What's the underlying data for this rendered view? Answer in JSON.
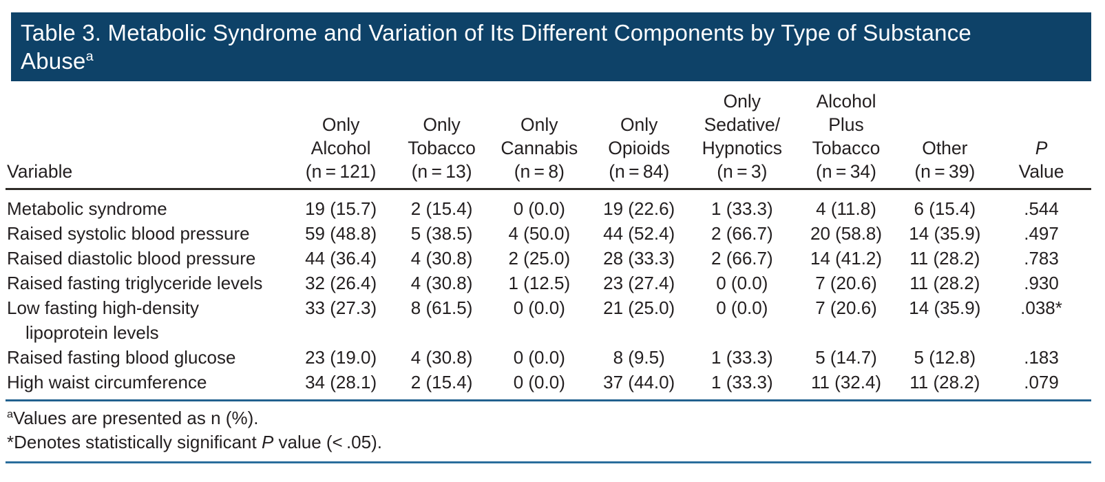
{
  "colors": {
    "title_bar_bg": "#0e4268",
    "title_text": "#ffffff",
    "body_text": "#231f20",
    "header_rule": "#2e2b27",
    "table_rule_blue": "#21618f",
    "bottom_rule_blue": "#2a6d9c"
  },
  "title": {
    "lines": [
      {
        "parts": [
          {
            "text": "Table 3. Metabolic Syndrome and Variation of Its Different Components by Type of Substance"
          }
        ]
      },
      {
        "parts": [
          {
            "text": "Abuse"
          },
          {
            "text": "a",
            "super": true
          }
        ]
      }
    ]
  },
  "table": {
    "columns": [
      {
        "id": "variable",
        "label_lines": [
          "Variable"
        ]
      },
      {
        "id": "only-alcohol",
        "label_lines": [
          "Only",
          "Alcohol",
          "(n = 121)"
        ]
      },
      {
        "id": "only-tobacco",
        "label_lines": [
          "Only",
          "Tobacco",
          "(n = 13)"
        ]
      },
      {
        "id": "only-cannabis",
        "label_lines": [
          "Only",
          "Cannabis",
          "(n = 8)"
        ]
      },
      {
        "id": "only-opioids",
        "label_lines": [
          "Only",
          "Opioids",
          "(n = 84)"
        ]
      },
      {
        "id": "only-sedative-hypnotics",
        "label_lines": [
          "Only",
          "Sedative/",
          "Hypnotics",
          "(n = 3)"
        ]
      },
      {
        "id": "alcohol-plus-tobacco",
        "label_lines": [
          "Alcohol",
          "Plus",
          "Tobacco",
          "(n = 34)"
        ]
      },
      {
        "id": "other",
        "label_lines": [
          "Other",
          "(n = 39)"
        ]
      },
      {
        "id": "p-value",
        "label_lines": [
          "P",
          "Value"
        ],
        "italic_line_index": 0
      }
    ],
    "rows": [
      {
        "label_lines": [
          "Metabolic syndrome"
        ],
        "values": [
          "19 (15.7)",
          "2 (15.4)",
          "0 (0.0)",
          "19 (22.6)",
          "1 (33.3)",
          "4 (11.8)",
          "6 (15.4)",
          ".544"
        ]
      },
      {
        "label_lines": [
          "Raised systolic blood pressure"
        ],
        "values": [
          "59 (48.8)",
          "5 (38.5)",
          "4 (50.0)",
          "44 (52.4)",
          "2 (66.7)",
          "20 (58.8)",
          "14 (35.9)",
          ".497"
        ]
      },
      {
        "label_lines": [
          "Raised diastolic blood pressure"
        ],
        "values": [
          "44 (36.4)",
          "4 (30.8)",
          "2 (25.0)",
          "28 (33.3)",
          "2 (66.7)",
          "14 (41.2)",
          "11 (28.2)",
          ".783"
        ]
      },
      {
        "label_lines": [
          "Raised fasting triglyceride levels"
        ],
        "values": [
          "32 (26.4)",
          "4 (30.8)",
          "1 (12.5)",
          "23 (27.4)",
          "0 (0.0)",
          "7 (20.6)",
          "11 (28.2)",
          ".930"
        ]
      },
      {
        "label_lines": [
          "Low fasting high-density",
          "lipoprotein levels"
        ],
        "values": [
          "33 (27.3)",
          "8 (61.5)",
          "0 (0.0)",
          "21 (25.0)",
          "0 (0.0)",
          "7 (20.6)",
          "14 (35.9)",
          ".038*"
        ]
      },
      {
        "label_lines": [
          "Raised fasting blood glucose"
        ],
        "values": [
          "23 (19.0)",
          "4 (30.8)",
          "0 (0.0)",
          "8 (9.5)",
          "1 (33.3)",
          "5 (14.7)",
          "5 (12.8)",
          ".183"
        ]
      },
      {
        "label_lines": [
          "High waist circumference"
        ],
        "values": [
          "34 (28.1)",
          "2 (15.4)",
          "0 (0.0)",
          "37 (44.0)",
          "1 (33.3)",
          "11 (32.4)",
          "11 (28.2)",
          ".079"
        ]
      }
    ]
  },
  "footnotes": [
    {
      "id": "a",
      "parts": [
        {
          "text": "a",
          "super": true
        },
        {
          "text": "Values are presented as n (%)."
        }
      ]
    },
    {
      "id": "significance",
      "parts": [
        {
          "text": "*Denotes statistically significant "
        },
        {
          "text": "P",
          "italic": true
        },
        {
          "text": " value (< .05)."
        }
      ]
    }
  ]
}
